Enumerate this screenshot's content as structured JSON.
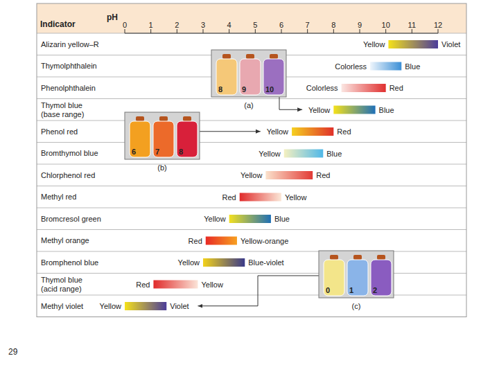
{
  "chart_data": {
    "type": "range_bar",
    "orientation": "horizontal",
    "x_label": "pH",
    "y_label": "Indicator",
    "xlim": [
      0,
      12
    ],
    "xticks": [
      0,
      1,
      2,
      3,
      4,
      5,
      6,
      7,
      8,
      9,
      10,
      11,
      12
    ],
    "categories": [
      "Alizarin yellow–R",
      "Thymolphthalein",
      "Phenolphthalein",
      "Thymol blue (base range)",
      "Phenol red",
      "Bromthymol blue",
      "Chlorphenol red",
      "Methyl red",
      "Bromcresol green",
      "Methyl orange",
      "Bromphenol blue",
      "Thymol blue (acid range)",
      "Methyl violet"
    ],
    "ranges": [
      {
        "low": 10.1,
        "high": 12.0,
        "low_label": "Yellow",
        "high_label": "Violet",
        "colors": [
          "#f5e11a",
          "#4b3c9a"
        ]
      },
      {
        "low": 9.4,
        "high": 10.6,
        "low_label": "Colorless",
        "high_label": "Blue",
        "colors": [
          "#eef5fc",
          "#3b8fd6"
        ]
      },
      {
        "low": 8.3,
        "high": 10.0,
        "low_label": "Colorless",
        "high_label": "Red",
        "colors": [
          "#fbe6e2",
          "#e03030"
        ]
      },
      {
        "low": 8.0,
        "high": 9.6,
        "low_label": "Yellow",
        "high_label": "Blue",
        "colors": [
          "#f5e11a",
          "#1f70b8"
        ]
      },
      {
        "low": 6.4,
        "high": 8.0,
        "low_label": "Yellow",
        "high_label": "Red",
        "colors": [
          "#f5d020",
          "#e0302a"
        ]
      },
      {
        "low": 6.1,
        "high": 7.6,
        "low_label": "Yellow",
        "high_label": "Blue",
        "colors": [
          "#f5f0c0",
          "#50b8e8"
        ]
      },
      {
        "low": 5.4,
        "high": 7.2,
        "low_label": "Yellow",
        "high_label": "Red",
        "colors": [
          "#fbe2cc",
          "#e23a35"
        ]
      },
      {
        "low": 4.4,
        "high": 6.0,
        "low_label": "Red",
        "high_label": "Yellow",
        "colors": [
          "#e02a2a",
          "#fbe8d8"
        ]
      },
      {
        "low": 4.0,
        "high": 5.6,
        "low_label": "Yellow",
        "high_label": "Blue",
        "colors": [
          "#f3e020",
          "#1f6fb5"
        ]
      },
      {
        "low": 3.1,
        "high": 4.3,
        "low_label": "Red",
        "high_label": "Yellow-orange",
        "colors": [
          "#e82a25",
          "#f7a020"
        ]
      },
      {
        "low": 3.0,
        "high": 4.6,
        "low_label": "Yellow",
        "high_label": "Blue-violet",
        "colors": [
          "#f3d21a",
          "#3a3a8a"
        ]
      },
      {
        "low": 1.1,
        "high": 2.8,
        "low_label": "Red",
        "high_label": "Yellow",
        "colors": [
          "#e02a2a",
          "#fbe4d8"
        ]
      },
      {
        "low": 0.0,
        "high": 1.6,
        "low_label": "Yellow",
        "high_label": "Violet",
        "colors": [
          "#f5e11a",
          "#4b3c9a"
        ]
      }
    ],
    "insets": [
      {
        "label": "(a)",
        "points_to": 3,
        "bottles": [
          {
            "text": "8",
            "color": "#f5c878"
          },
          {
            "text": "9",
            "color": "#e8a8b0"
          },
          {
            "text": "10",
            "color": "#9b6fc0"
          }
        ]
      },
      {
        "label": "(b)",
        "points_to": 4,
        "bottles": [
          {
            "text": "6",
            "color": "#f3a020"
          },
          {
            "text": "7",
            "color": "#ec6a2a"
          },
          {
            "text": "8",
            "color": "#d8203a"
          }
        ]
      },
      {
        "label": "(c)",
        "points_to": 12,
        "bottles": [
          {
            "text": "0",
            "color": "#f3e58a"
          },
          {
            "text": "1",
            "color": "#8ab4e8"
          },
          {
            "text": "2",
            "color": "#8a5cc0"
          }
        ]
      }
    ],
    "page_number": "29"
  }
}
